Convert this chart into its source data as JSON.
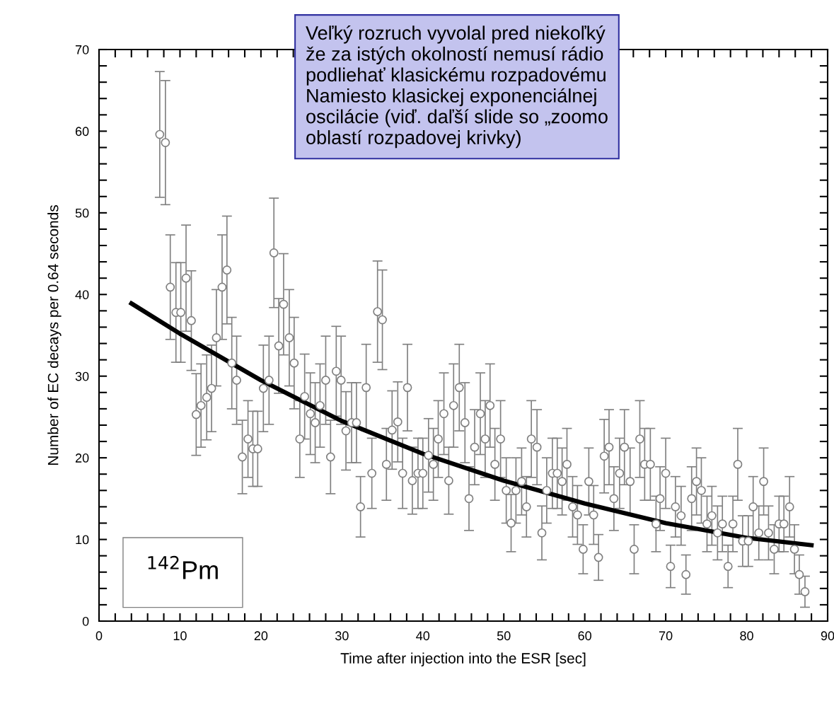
{
  "chart_data": {
    "type": "scatter",
    "xlabel": "Time after injection into the ESR [sec]",
    "ylabel": "Number of EC decays per 0.64 seconds",
    "xlim": [
      0,
      90
    ],
    "ylim": [
      0,
      70
    ],
    "xticks": [
      0,
      {
        "value": 2,
        "label": null
      },
      {
        "value": 4,
        "label": null
      },
      {
        "value": 6,
        "label": null
      },
      {
        "value": 8,
        "label": null
      },
      10,
      {
        "value": 12,
        "label": null
      },
      {
        "value": 14,
        "label": null
      },
      {
        "value": 16,
        "label": null
      },
      {
        "value": 18,
        "label": null
      },
      20,
      {
        "value": 22,
        "label": null
      },
      {
        "value": 24,
        "label": null
      },
      {
        "value": 26,
        "label": null
      },
      {
        "value": 28,
        "label": null
      },
      30,
      {
        "value": 32,
        "label": null
      },
      {
        "value": 34,
        "label": null
      },
      {
        "value": 36,
        "label": null
      },
      {
        "value": 38,
        "label": null
      },
      40,
      {
        "value": 42,
        "label": null
      },
      {
        "value": 44,
        "label": null
      },
      {
        "value": 46,
        "label": null
      },
      {
        "value": 48,
        "label": null
      },
      50,
      {
        "value": 52,
        "label": null
      },
      {
        "value": 54,
        "label": null
      },
      {
        "value": 56,
        "label": null
      },
      {
        "value": 58,
        "label": null
      },
      60,
      {
        "value": 62,
        "label": null
      },
      {
        "value": 64,
        "label": null
      },
      {
        "value": 66,
        "label": null
      },
      {
        "value": 68,
        "label": null
      },
      70,
      {
        "value": 72,
        "label": null
      },
      {
        "value": 74,
        "label": null
      },
      {
        "value": 76,
        "label": null
      },
      {
        "value": 78,
        "label": null
      },
      80,
      {
        "value": 82,
        "label": null
      },
      {
        "value": 84,
        "label": null
      },
      {
        "value": 86,
        "label": null
      },
      {
        "value": 88,
        "label": null
      },
      90
    ],
    "yticks": [
      0,
      {
        "value": 2,
        "label": null
      },
      {
        "value": 4,
        "label": null
      },
      {
        "value": 6,
        "label": null
      },
      {
        "value": 8,
        "label": null
      },
      10,
      {
        "value": 12,
        "label": null
      },
      {
        "value": 14,
        "label": null
      },
      {
        "value": 16,
        "label": null
      },
      {
        "value": 18,
        "label": null
      },
      20,
      {
        "value": 22,
        "label": null
      },
      {
        "value": 24,
        "label": null
      },
      {
        "value": 26,
        "label": null
      },
      {
        "value": 28,
        "label": null
      },
      30,
      {
        "value": 32,
        "label": null
      },
      {
        "value": 34,
        "label": null
      },
      {
        "value": 36,
        "label": null
      },
      {
        "value": 38,
        "label": null
      },
      40,
      {
        "value": 42,
        "label": null
      },
      {
        "value": 44,
        "label": null
      },
      {
        "value": 46,
        "label": null
      },
      {
        "value": 48,
        "label": null
      },
      50,
      {
        "value": 52,
        "label": null
      },
      {
        "value": 54,
        "label": null
      },
      {
        "value": 56,
        "label": null
      },
      {
        "value": 58,
        "label": null
      },
      60,
      {
        "value": 62,
        "label": null
      },
      {
        "value": 64,
        "label": null
      },
      {
        "value": 66,
        "label": null
      },
      {
        "value": 68,
        "label": null
      },
      70
    ],
    "grid": false,
    "series": [
      {
        "color": "#808080",
        "marker": "circle",
        "x": [
          7.5,
          8.2,
          8.8,
          9.5,
          10.1,
          10.75,
          11.4,
          12.0,
          12.6,
          13.3,
          13.9,
          14.5,
          15.2,
          15.8,
          16.4,
          17.0,
          17.7,
          18.4,
          19.0,
          19.6,
          20.3,
          21.0,
          21.6,
          22.2,
          22.8,
          23.5,
          24.1,
          24.8,
          25.4,
          26.1,
          26.7,
          27.3,
          28.0,
          28.6,
          29.3,
          29.9,
          30.5,
          31.2,
          31.8,
          32.3,
          33.0,
          33.7,
          34.4,
          35.0,
          35.5,
          36.2,
          36.9,
          37.5,
          38.1,
          38.7,
          39.4,
          40.0,
          40.7,
          41.3,
          41.9,
          42.6,
          43.2,
          43.8,
          44.5,
          45.2,
          45.7,
          46.4,
          47.1,
          47.7,
          48.3,
          48.9,
          49.6,
          50.3,
          50.9,
          51.5,
          52.2,
          52.8,
          53.4,
          54.1,
          54.7,
          55.3,
          56.0,
          56.6,
          57.2,
          57.8,
          58.5,
          59.1,
          59.8,
          60.5,
          61.1,
          61.7,
          62.4,
          63.0,
          63.6,
          64.3,
          64.9,
          65.6,
          66.1,
          66.8,
          67.4,
          68.1,
          68.8,
          69.3,
          70.0,
          70.6,
          71.2,
          71.9,
          72.5,
          73.2,
          73.8,
          74.4,
          75.1,
          75.7,
          76.4,
          77.0,
          77.7,
          78.3,
          78.9,
          79.5,
          80.2,
          80.8,
          81.5,
          82.1,
          82.7,
          83.4,
          84.0,
          84.6,
          85.3,
          85.9,
          86.5,
          87.2
        ],
        "values": [
          59.6,
          58.6,
          40.9,
          37.8,
          37.8,
          42.0,
          36.8,
          25.3,
          26.4,
          27.4,
          28.5,
          34.7,
          40.9,
          43.0,
          31.6,
          29.5,
          20.1,
          22.3,
          21.1,
          21.1,
          28.5,
          29.5,
          45.1,
          33.7,
          38.8,
          34.7,
          31.6,
          22.3,
          27.5,
          25.4,
          24.3,
          26.4,
          29.5,
          20.1,
          30.6,
          29.5,
          23.3,
          24.3,
          24.3,
          14.0,
          28.6,
          18.1,
          37.9,
          36.9,
          19.2,
          23.4,
          24.4,
          18.1,
          28.6,
          17.2,
          18.1,
          18.1,
          20.3,
          19.2,
          22.3,
          25.4,
          17.2,
          26.4,
          28.6,
          24.3,
          15.0,
          21.3,
          25.4,
          22.3,
          26.4,
          19.2,
          22.3,
          16.0,
          12.0,
          16.0,
          17.1,
          14.0,
          22.3,
          21.3,
          10.8,
          16.0,
          18.1,
          18.1,
          17.1,
          19.2,
          14.0,
          13.0,
          8.8,
          17.1,
          13.0,
          7.8,
          20.2,
          21.3,
          15.0,
          18.1,
          21.3,
          17.1,
          8.8,
          22.3,
          19.2,
          19.2,
          11.9,
          15.0,
          18.1,
          6.7,
          14.0,
          12.9,
          5.7,
          15.0,
          17.1,
          16.0,
          11.9,
          12.9,
          10.8,
          11.9,
          6.7,
          11.9,
          19.2,
          9.8,
          9.8,
          14.0,
          10.8,
          17.1,
          10.8,
          8.8,
          11.9,
          11.9,
          14.0,
          8.8,
          5.7,
          3.6
        ],
        "errors": [
          7.7,
          7.6,
          6.4,
          6.1,
          6.1,
          6.5,
          6.1,
          5.0,
          5.1,
          5.2,
          5.3,
          5.9,
          6.4,
          6.6,
          5.6,
          5.4,
          4.5,
          4.7,
          4.6,
          4.6,
          5.3,
          5.4,
          6.7,
          5.8,
          6.2,
          5.9,
          5.6,
          4.7,
          5.2,
          5.0,
          4.9,
          5.1,
          5.4,
          4.5,
          5.5,
          5.4,
          4.8,
          4.9,
          4.9,
          3.7,
          5.3,
          4.3,
          6.2,
          6.1,
          4.4,
          4.8,
          4.9,
          4.3,
          5.3,
          4.1,
          4.3,
          4.3,
          4.5,
          4.4,
          4.7,
          5.0,
          4.1,
          5.1,
          5.3,
          4.9,
          3.9,
          4.6,
          5.0,
          4.7,
          5.1,
          4.4,
          4.7,
          4.0,
          3.5,
          4.0,
          4.1,
          3.7,
          4.7,
          4.6,
          3.3,
          4.0,
          4.3,
          4.3,
          4.1,
          4.4,
          3.7,
          3.6,
          3.0,
          4.1,
          3.6,
          2.8,
          4.5,
          4.6,
          3.9,
          4.3,
          4.6,
          4.1,
          3.0,
          4.7,
          4.4,
          4.4,
          3.4,
          3.9,
          4.3,
          2.6,
          3.7,
          3.6,
          2.4,
          3.9,
          4.1,
          4.0,
          3.4,
          3.6,
          3.3,
          3.4,
          2.6,
          3.4,
          4.4,
          3.1,
          3.1,
          3.7,
          3.3,
          4.1,
          3.3,
          3.0,
          3.4,
          3.4,
          3.7,
          3.0,
          2.4,
          1.9
        ]
      },
      {
        "type": "line",
        "color": "#000000",
        "marker": "none",
        "line_style": "solid",
        "x": [
          4,
          10,
          20,
          30,
          40,
          50,
          60,
          70,
          80,
          88
        ],
        "values": [
          38.9,
          35.2,
          29.5,
          24.5,
          20.5,
          17.2,
          14.4,
          12.0,
          10.2,
          9.3
        ]
      }
    ],
    "annotations": [
      "Veľký rozruch vyvolal pred niekoľký\nže za istých okolností nemusí rádio\npodliehať klasickému rozpadovému\nNamiesto klasickej exponenciálnej\noscilácie (viď. daľší slide so „zoomo\noblastí rozpadovej krivky)",
      "$^{142}$Pm"
    ]
  }
}
